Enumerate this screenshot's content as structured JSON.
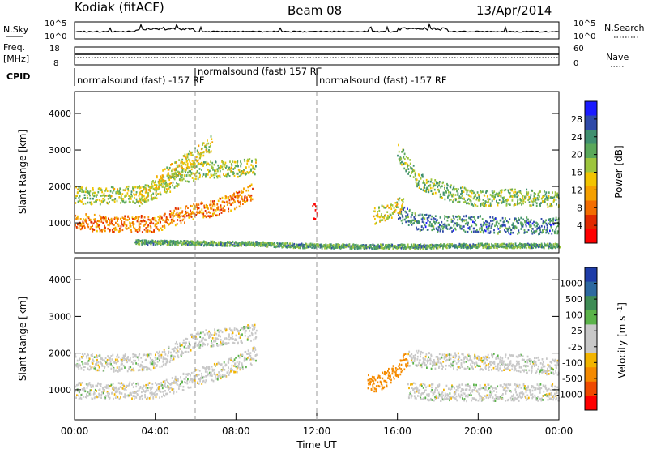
{
  "header": {
    "station": "Kodiak (fitACF)",
    "beam": "Beam 08",
    "date": "13/Apr/2014"
  },
  "top_panels": {
    "nsky": {
      "label": "N.Sky",
      "ticks_left": [
        "10^5",
        "10^0"
      ],
      "ticks_right": [
        "10^5",
        "10^0"
      ],
      "right_label": "N.Search"
    },
    "freq": {
      "label_lines": [
        "Freq.",
        "[MHz]"
      ],
      "ticks_left": [
        "18",
        "8"
      ],
      "ticks_right": [
        "60",
        "0"
      ],
      "right_label": "Nave"
    },
    "cpid": {
      "label": "CPID",
      "segments": [
        {
          "text": "normalsound (fast) -157 RF",
          "start_h": 0.0,
          "end_h": 6.0,
          "row": "low"
        },
        {
          "text": "normalsound (fast) 157 RF",
          "start_h": 6.0,
          "end_h": 12.0,
          "row": "high"
        },
        {
          "text": "normalsound (fast) -157 RF",
          "start_h": 12.0,
          "end_h": 24.0,
          "row": "low"
        }
      ]
    }
  },
  "chart_data": [
    {
      "type": "heatmap",
      "name": "power",
      "ylabel": "Slant Range [km]",
      "ylim": [
        180,
        4600
      ],
      "yticks": [
        "1000",
        "2000",
        "3000",
        "4000"
      ],
      "colorbar": {
        "label": "Power [dB]",
        "ticks": [
          "4",
          "8",
          "12",
          "16",
          "20",
          "24",
          "28"
        ],
        "colors": [
          "#1b1bff",
          "#2f4aa8",
          "#3f8f6f",
          "#5aa85a",
          "#9dc53d",
          "#f2c400",
          "#f5a000",
          "#f36d00",
          "#e12a00",
          "#ff0000"
        ]
      },
      "features": [
        {
          "label": "lower band",
          "t": [
            0,
            2,
            3,
            4,
            5,
            6,
            7,
            8,
            8.8
          ],
          "r": [
            1050,
            1000,
            1000,
            1000,
            1200,
            1350,
            1450,
            1650,
            1900
          ],
          "value": 22
        },
        {
          "label": "upper band",
          "t": [
            0,
            1,
            2,
            3,
            4,
            5,
            6,
            7,
            8,
            9
          ],
          "r": [
            1800,
            1750,
            1800,
            1800,
            1900,
            2200,
            2450,
            2500,
            2500,
            2600
          ],
          "value": 14
        },
        {
          "label": "upper-arc",
          "t": [
            3.2,
            4,
            5,
            6,
            6.8
          ],
          "r": [
            1600,
            2100,
            2500,
            2900,
            3200
          ],
          "value": 16
        },
        {
          "label": "late upper",
          "t": [
            16,
            17,
            18,
            19,
            20,
            21,
            22,
            23,
            24
          ],
          "r": [
            3000,
            2200,
            1950,
            1800,
            1700,
            1700,
            1750,
            1700,
            1650
          ],
          "value": 12
        },
        {
          "label": "late lower",
          "t": [
            16,
            17,
            18,
            19,
            20,
            21,
            22,
            23,
            24
          ],
          "r": [
            1300,
            1050,
            1000,
            1000,
            1000,
            950,
            950,
            950,
            950
          ],
          "value": 8
        },
        {
          "label": "14h patch",
          "t": [
            14.8,
            15.3,
            15.8,
            16.3
          ],
          "r": [
            1200,
            1300,
            1400,
            1600
          ],
          "value": 16
        },
        {
          "label": "12h spot",
          "t": [
            11.8,
            12.0
          ],
          "r": [
            1350,
            1350
          ],
          "value": 28
        },
        {
          "label": "ground",
          "t": [
            3,
            5,
            7,
            9,
            11,
            14,
            17,
            20,
            24
          ],
          "r": [
            500,
            480,
            460,
            450,
            400,
            380,
            380,
            400,
            400
          ],
          "value": 10
        }
      ]
    },
    {
      "type": "heatmap",
      "name": "velocity",
      "ylabel": "Slant Range [km]",
      "ylim": [
        180,
        4600
      ],
      "yticks": [
        "1000",
        "2000",
        "3000",
        "4000"
      ],
      "xticks": [
        "00:00",
        "04:00",
        "08:00",
        "12:00",
        "16:00",
        "20:00",
        "00:00"
      ],
      "xlabel": "Time UT",
      "colorbar": {
        "label": "Velocity [m s^-1]",
        "ticks": [
          "1000",
          "500",
          "100",
          "25",
          "-25",
          "-100",
          "-500",
          "-1000"
        ],
        "colors": [
          "#1e3ca8",
          "#2d69a0",
          "#3e8c55",
          "#5bb34a",
          "#c8c8c8",
          "#c8c8c8",
          "#f2b400",
          "#f58a00",
          "#ef4a00",
          "#ff0000"
        ]
      },
      "features": [
        {
          "label": "gray bands",
          "t": [
            0,
            4,
            8,
            9
          ],
          "r": [
            1000,
            1000,
            1700,
            2000
          ],
          "value": 0
        },
        {
          "label": "upper gray",
          "t": [
            0,
            2,
            4,
            6,
            8,
            9
          ],
          "r": [
            1800,
            1750,
            1800,
            2400,
            2500,
            2600
          ],
          "value": 0
        },
        {
          "label": "orange patch",
          "t": [
            14.5,
            15,
            15.5,
            16,
            16.5
          ],
          "r": [
            1200,
            1200,
            1350,
            1600,
            1900
          ],
          "value": -300
        },
        {
          "label": "late gray",
          "t": [
            16.5,
            18,
            20,
            22,
            24
          ],
          "r": [
            1900,
            1800,
            1800,
            1750,
            1600
          ],
          "value": 0
        },
        {
          "label": "late lower gray",
          "t": [
            16.5,
            18,
            20,
            22,
            24
          ],
          "r": [
            1000,
            950,
            950,
            950,
            950
          ],
          "value": 0
        }
      ]
    }
  ]
}
